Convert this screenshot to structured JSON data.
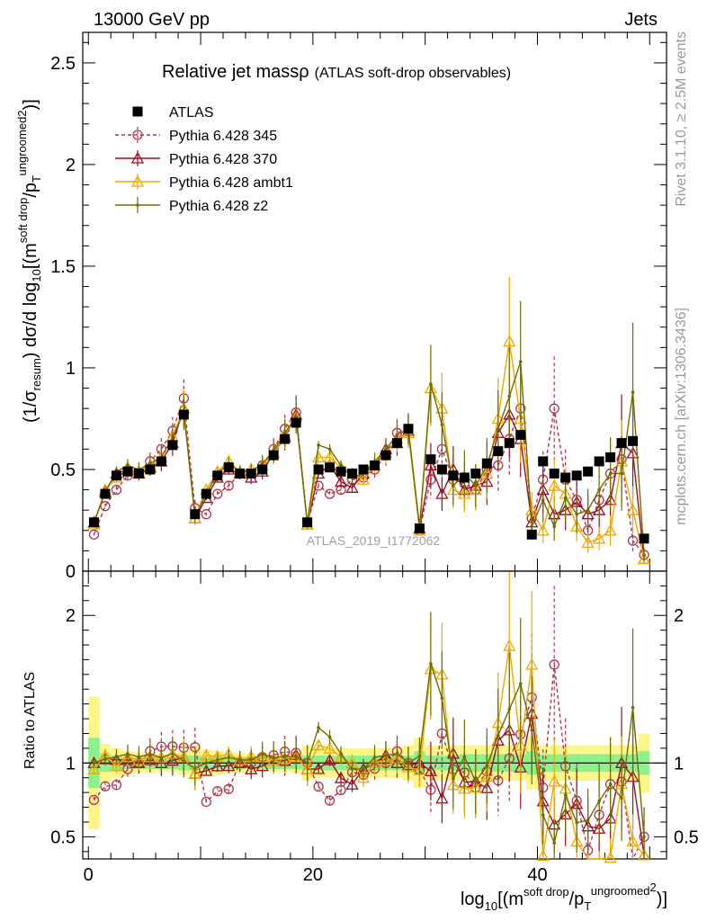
{
  "header": {
    "beam": "13000 GeV pp",
    "category": "Jets"
  },
  "side_labels": {
    "rivet": "Rivet 3.1.10, ≥ 2.5M events",
    "mcplots": "mcplots.cern.ch [arXiv:1306.3436]"
  },
  "watermark": "ATLAS_2019_I1772062",
  "chart_data": {
    "type": "scatter",
    "title_main": "Relative jet mass",
    "title_rho": "ρ",
    "title_sub": "(ATLAS soft-drop observables)",
    "xlabel_parts": {
      "log": "log",
      "log_sub": "10",
      "open": "[(m",
      "m_sup": "soft drop",
      "slash": "/p",
      "p_sub": "T",
      "p_sup": "ungroomed",
      "close_sup": "2",
      "close": ")",
      "end": "]"
    },
    "ylabel_parts": {
      "pre": "(1/σ",
      "sig_sub": "resum",
      "mid": ") dσ/d log",
      "log_sub": "10",
      "open": "[(m",
      "m_sup": "soft drop",
      "slash": "/p",
      "p_sub": "T",
      "p_sup": "ungroomed",
      "close_sup": "2",
      "close": ")]"
    },
    "ratio_ylabel": "Ratio to ATLAS",
    "xlim": [
      -0.5,
      51.5
    ],
    "ylim": [
      0,
      2.65
    ],
    "ratio_ylim": [
      0.35,
      2.3
    ],
    "x_ticks": [
      0,
      20,
      40
    ],
    "x_tick_labels": [
      "0",
      "20",
      "40"
    ],
    "y_ticks": [
      0,
      0.5,
      1,
      1.5,
      2,
      2.5
    ],
    "y_tick_labels": [
      "0",
      "0.5",
      "1",
      "1.5",
      "2",
      "2.5"
    ],
    "ratio_ticks": [
      0.5,
      1,
      2
    ],
    "ratio_tick_labels": [
      "0.5",
      "1",
      "2"
    ],
    "x": [
      0.5,
      1.5,
      2.5,
      3.5,
      4.5,
      5.5,
      6.5,
      7.5,
      8.5,
      9.5,
      10.5,
      11.5,
      12.5,
      13.5,
      14.5,
      15.5,
      16.5,
      17.5,
      18.5,
      19.5,
      20.5,
      21.5,
      22.5,
      23.5,
      24.5,
      25.5,
      26.5,
      27.5,
      28.5,
      29.5,
      30.5,
      31.5,
      32.5,
      33.5,
      34.5,
      35.5,
      36.5,
      37.5,
      38.5,
      39.5,
      40.5,
      41.5,
      42.5,
      43.5,
      44.5,
      45.5,
      46.5,
      47.5,
      48.5,
      49.5
    ],
    "band_inner": [
      0.17,
      0.06,
      0.05,
      0.04,
      0.04,
      0.04,
      0.04,
      0.04,
      0.05,
      0.05,
      0.04,
      0.04,
      0.04,
      0.04,
      0.04,
      0.04,
      0.04,
      0.04,
      0.04,
      0.05,
      0.05,
      0.05,
      0.05,
      0.05,
      0.05,
      0.05,
      0.05,
      0.05,
      0.05,
      0.08,
      0.05,
      0.05,
      0.05,
      0.06,
      0.06,
      0.06,
      0.06,
      0.06,
      0.06,
      0.08,
      0.06,
      0.06,
      0.06,
      0.06,
      0.06,
      0.06,
      0.06,
      0.06,
      0.06,
      0.08
    ],
    "band_outer": [
      0.45,
      0.13,
      0.1,
      0.08,
      0.07,
      0.07,
      0.06,
      0.06,
      0.08,
      0.12,
      0.09,
      0.08,
      0.07,
      0.07,
      0.06,
      0.06,
      0.06,
      0.06,
      0.07,
      0.12,
      0.1,
      0.1,
      0.1,
      0.1,
      0.1,
      0.1,
      0.1,
      0.1,
      0.12,
      0.17,
      0.12,
      0.12,
      0.12,
      0.12,
      0.12,
      0.12,
      0.12,
      0.12,
      0.12,
      0.18,
      0.12,
      0.12,
      0.12,
      0.12,
      0.12,
      0.12,
      0.12,
      0.12,
      0.12,
      0.2
    ],
    "series": [
      {
        "name": "ATLAS",
        "color": "#000000",
        "marker": "square",
        "values": [
          0.24,
          0.38,
          0.47,
          0.49,
          0.48,
          0.5,
          0.54,
          0.62,
          0.77,
          0.28,
          0.38,
          0.47,
          0.51,
          0.48,
          0.48,
          0.5,
          0.57,
          0.65,
          0.73,
          0.24,
          0.5,
          0.51,
          0.49,
          0.48,
          0.5,
          0.52,
          0.57,
          0.63,
          0.7,
          0.21,
          0.55,
          0.5,
          0.47,
          0.46,
          0.48,
          0.53,
          0.59,
          0.63,
          0.67,
          0.18,
          0.54,
          0.48,
          0.46,
          0.47,
          0.49,
          0.54,
          0.56,
          0.63,
          0.64,
          0.16
        ]
      },
      {
        "name": "Pythia 6.428 345",
        "color": "#b2344c",
        "marker": "circle",
        "dashed": true,
        "values": [
          0.18,
          0.32,
          0.4,
          0.47,
          0.48,
          0.54,
          0.6,
          0.69,
          0.85,
          0.31,
          0.28,
          0.38,
          0.42,
          0.48,
          0.48,
          0.52,
          0.6,
          0.7,
          0.78,
          0.24,
          0.42,
          0.38,
          0.4,
          0.45,
          0.46,
          0.5,
          0.57,
          0.68,
          0.7,
          0.2,
          0.45,
          0.6,
          0.45,
          0.43,
          0.4,
          0.5,
          0.52,
          0.65,
          0.8,
          0.26,
          0.45,
          0.8,
          0.45,
          0.35,
          0.2,
          0.35,
          0.48,
          0.55,
          0.15,
          0.08
        ]
      },
      {
        "name": "Pythia 6.428 370",
        "color": "#9b0e22",
        "marker": "triangle",
        "dashed": false,
        "values": [
          0.24,
          0.39,
          0.48,
          0.5,
          0.48,
          0.51,
          0.54,
          0.63,
          0.8,
          0.26,
          0.36,
          0.46,
          0.5,
          0.48,
          0.46,
          0.49,
          0.58,
          0.66,
          0.77,
          0.23,
          0.48,
          0.52,
          0.44,
          0.41,
          0.48,
          0.52,
          0.6,
          0.63,
          0.69,
          0.21,
          0.52,
          0.38,
          0.5,
          0.4,
          0.42,
          0.44,
          0.68,
          0.77,
          0.65,
          0.24,
          0.4,
          0.28,
          0.3,
          0.34,
          0.28,
          0.3,
          0.35,
          0.63,
          0.58,
          0.06
        ]
      },
      {
        "name": "Pythia 6.428 ambt1",
        "color": "#f0a800",
        "marker": "triangle",
        "dashed": false,
        "values": [
          0.23,
          0.4,
          0.46,
          0.51,
          0.49,
          0.52,
          0.56,
          0.66,
          0.8,
          0.26,
          0.4,
          0.49,
          0.54,
          0.49,
          0.5,
          0.52,
          0.58,
          0.67,
          0.76,
          0.23,
          0.56,
          0.56,
          0.51,
          0.48,
          0.45,
          0.52,
          0.58,
          0.65,
          0.68,
          0.2,
          0.9,
          0.8,
          0.4,
          0.38,
          0.4,
          0.48,
          0.75,
          1.13,
          0.75,
          0.3,
          0.2,
          0.42,
          0.38,
          0.22,
          0.14,
          0.16,
          0.2,
          0.54,
          0.3,
          0.06
        ]
      },
      {
        "name": "Pythia 6.428 z2",
        "color": "#6e6e00",
        "marker": "dot",
        "dashed": false,
        "values": [
          0.24,
          0.39,
          0.49,
          0.52,
          0.5,
          0.53,
          0.56,
          0.66,
          0.78,
          0.27,
          0.38,
          0.48,
          0.53,
          0.49,
          0.49,
          0.53,
          0.59,
          0.68,
          0.76,
          0.24,
          0.62,
          0.6,
          0.52,
          0.46,
          0.48,
          0.54,
          0.6,
          0.67,
          0.7,
          0.22,
          0.92,
          0.72,
          0.42,
          0.48,
          0.42,
          0.52,
          0.7,
          0.86,
          1.03,
          0.22,
          0.35,
          0.22,
          0.36,
          0.28,
          0.3,
          0.4,
          0.48,
          0.48,
          0.88,
          0.08
        ]
      }
    ]
  }
}
